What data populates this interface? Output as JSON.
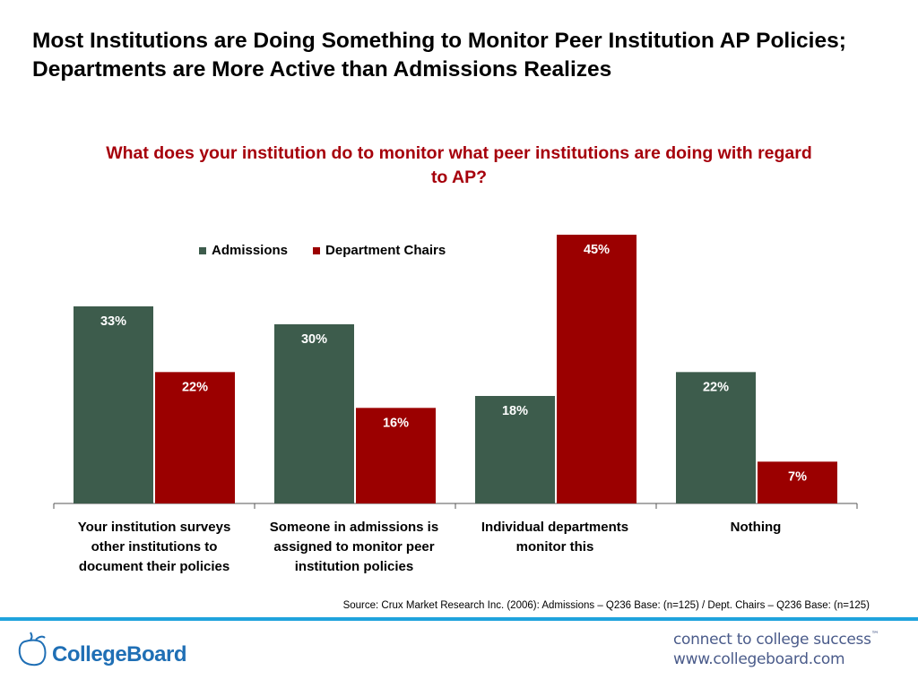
{
  "slide": {
    "title": "Most Institutions are Doing Something to Monitor Peer Institution AP Policies; Departments are More Active than Admissions Realizes"
  },
  "chart_data": {
    "type": "bar",
    "title": "What does your institution do to monitor what peer institutions are doing with regard to AP?",
    "categories": [
      "Your institution surveys other institutions to document their policies",
      "Someone in admissions is assigned to monitor peer institution policies",
      "Individual departments monitor this",
      "Nothing"
    ],
    "series": [
      {
        "name": "Admissions",
        "color": "#3d5c4c",
        "values": [
          33,
          30,
          18,
          22
        ],
        "labels": [
          "33%",
          "30%",
          "18%",
          "22%"
        ]
      },
      {
        "name": "Department Chairs",
        "color": "#9b0000",
        "values": [
          22,
          16,
          45,
          7
        ],
        "labels": [
          "22%",
          "16%",
          "45%",
          "7%"
        ]
      }
    ],
    "ylim": [
      0,
      45
    ],
    "grid": false,
    "legend": "top-left",
    "xlabel": "",
    "ylabel": ""
  },
  "source": "Source: Crux Market Research Inc. (2006): Admissions – Q236 Base: (n=125) / Dept. Chairs – Q236 Base: (n=125)",
  "footer": {
    "logo_text": "CollegeBoard",
    "tagline": "connect to college success",
    "trademark": "™",
    "url": "www.collegeboard.com",
    "rule_color": "#1fa3dd"
  }
}
